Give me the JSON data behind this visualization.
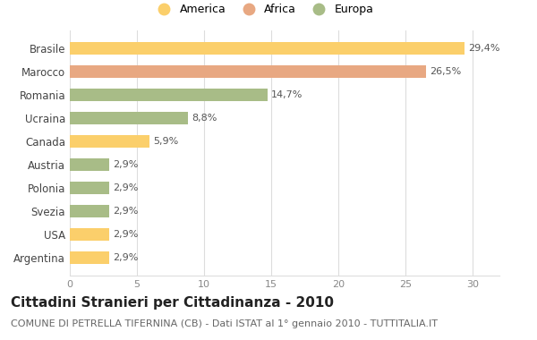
{
  "categories": [
    "Argentina",
    "USA",
    "Svezia",
    "Polonia",
    "Austria",
    "Canada",
    "Ucraina",
    "Romania",
    "Marocco",
    "Brasile"
  ],
  "values": [
    2.9,
    2.9,
    2.9,
    2.9,
    2.9,
    5.9,
    8.8,
    14.7,
    26.5,
    29.4
  ],
  "labels": [
    "2,9%",
    "2,9%",
    "2,9%",
    "2,9%",
    "2,9%",
    "5,9%",
    "8,8%",
    "14,7%",
    "26,5%",
    "29,4%"
  ],
  "colors": [
    "#FBCF6B",
    "#FBCF6B",
    "#A8BC87",
    "#A8BC87",
    "#A8BC87",
    "#FBCF6B",
    "#A8BC87",
    "#A8BC87",
    "#E8A882",
    "#FBCF6B"
  ],
  "legend": [
    {
      "label": "America",
      "color": "#FBCF6B"
    },
    {
      "label": "Africa",
      "color": "#E8A882"
    },
    {
      "label": "Europa",
      "color": "#A8BC87"
    }
  ],
  "xlim": [
    0,
    32
  ],
  "xticks": [
    0,
    5,
    10,
    15,
    20,
    25,
    30
  ],
  "title": "Cittadini Stranieri per Cittadinanza - 2010",
  "subtitle": "COMUNE DI PETRELLA TIFERNINA (CB) - Dati ISTAT al 1° gennaio 2010 - TUTTITALIA.IT",
  "title_fontsize": 11,
  "subtitle_fontsize": 8,
  "bar_height": 0.55,
  "background_color": "#ffffff",
  "grid_color": "#dddddd",
  "label_fontsize": 8,
  "tick_fontsize": 8,
  "ytick_fontsize": 8.5
}
